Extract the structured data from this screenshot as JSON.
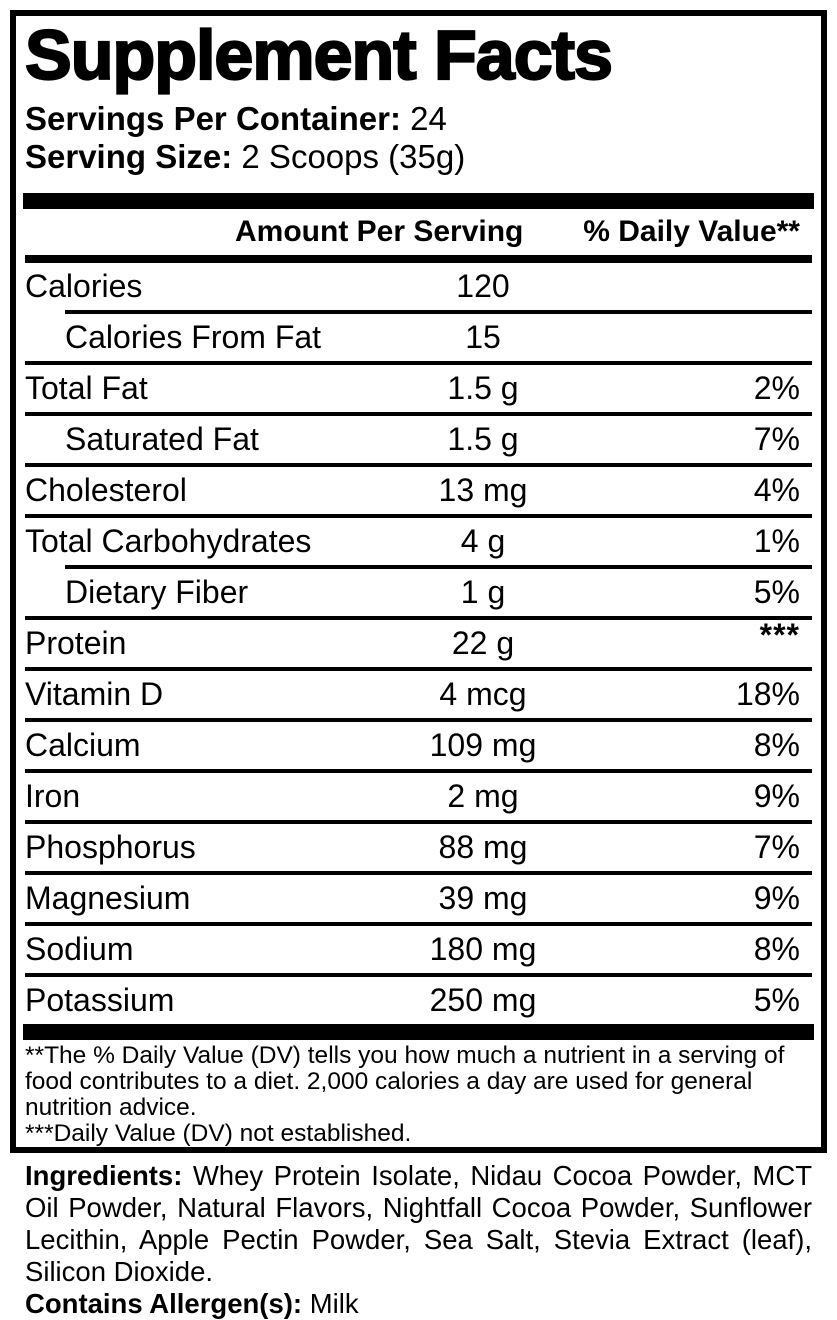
{
  "colors": {
    "ink": "#000000",
    "paper": "#ffffff"
  },
  "label": {
    "title": "Supplement Facts",
    "servings_per_container": {
      "label": "Servings Per Container:",
      "value": "24"
    },
    "serving_size": {
      "label": "Serving Size:",
      "value": "2 Scoops (35g)"
    },
    "columns": {
      "amount": "Amount Per Serving",
      "daily_value": "% Daily Value**"
    },
    "rows": [
      {
        "name": "Calories",
        "amount": "120",
        "dv": "",
        "indent": false,
        "sep_above": "none",
        "dv_raised": false
      },
      {
        "name": "Calories From Fat",
        "amount": "15",
        "dv": "",
        "indent": true,
        "sep_above": "indent",
        "dv_raised": false
      },
      {
        "name": "Total Fat",
        "amount": "1.5 g",
        "dv": "2%",
        "indent": false,
        "sep_above": "full",
        "dv_raised": false
      },
      {
        "name": "Saturated Fat",
        "amount": "1.5 g",
        "dv": "7%",
        "indent": true,
        "sep_above": "full",
        "dv_raised": false
      },
      {
        "name": "Cholesterol",
        "amount": "13 mg",
        "dv": "4%",
        "indent": false,
        "sep_above": "full",
        "dv_raised": false
      },
      {
        "name": "Total Carbohydrates",
        "amount": "4 g",
        "dv": "1%",
        "indent": false,
        "sep_above": "full",
        "dv_raised": false
      },
      {
        "name": "Dietary Fiber",
        "amount": "1 g",
        "dv": "5%",
        "indent": true,
        "sep_above": "indent",
        "dv_raised": false
      },
      {
        "name": "Protein",
        "amount": "22 g",
        "dv": "***",
        "indent": false,
        "sep_above": "full",
        "dv_raised": true
      },
      {
        "name": "Vitamin D",
        "amount": "4 mcg",
        "dv": "18%",
        "indent": false,
        "sep_above": "full",
        "dv_raised": false
      },
      {
        "name": "Calcium",
        "amount": "109 mg",
        "dv": "8%",
        "indent": false,
        "sep_above": "full",
        "dv_raised": false
      },
      {
        "name": "Iron",
        "amount": "2 mg",
        "dv": "9%",
        "indent": false,
        "sep_above": "full",
        "dv_raised": false
      },
      {
        "name": "Phosphorus",
        "amount": "88 mg",
        "dv": "7%",
        "indent": false,
        "sep_above": "full",
        "dv_raised": false
      },
      {
        "name": "Magnesium",
        "amount": "39 mg",
        "dv": "9%",
        "indent": false,
        "sep_above": "full",
        "dv_raised": false
      },
      {
        "name": "Sodium",
        "amount": "180 mg",
        "dv": "8%",
        "indent": false,
        "sep_above": "full",
        "dv_raised": false
      },
      {
        "name": "Potassium",
        "amount": "250 mg",
        "dv": "5%",
        "indent": false,
        "sep_above": "full",
        "dv_raised": false
      }
    ],
    "footnotes": {
      "daily_value": "**The % Daily Value (DV) tells you how much a nutrient in a serving of food contributes to a diet. 2,000 calories a day are used for general nutrition advice.",
      "not_established": "***Daily Value (DV) not established."
    },
    "ingredients": {
      "label": "Ingredients:",
      "text": " Whey Protein Isolate, Nidau Cocoa Powder, MCT Oil Powder, Natural Flavors, Nightfall Cocoa Powder, Sunflower Lecithin, Apple Pectin Powder, Sea Salt, Stevia Extract (leaf), Silicon Dioxide."
    },
    "allergens": {
      "label": "Contains Allergen(s):",
      "value": " Milk"
    }
  }
}
